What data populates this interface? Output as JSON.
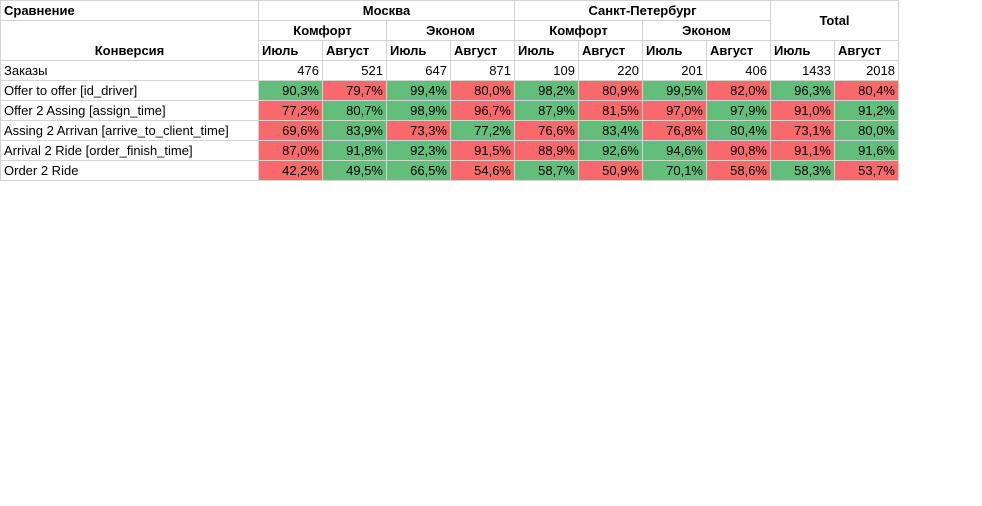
{
  "header": {
    "title": "Сравнение",
    "row_label": "Конверсия",
    "cities": [
      "Москва",
      "Санкт-Петербург"
    ],
    "total": "Total",
    "classes": [
      "Комфорт",
      "Эконом",
      "Комфорт",
      "Эконом"
    ],
    "months": [
      "Июль",
      "Август",
      "Июль",
      "Август",
      "Июль",
      "Август",
      "Июль",
      "Август",
      "Июль",
      "Август"
    ]
  },
  "colors": {
    "green": "#63be7b",
    "red": "#f8696b"
  },
  "rows": [
    {
      "label": "Заказы",
      "values": [
        "476",
        "521",
        "647",
        "871",
        "109",
        "220",
        "201",
        "406",
        "1433",
        "2018"
      ],
      "colors": [
        "",
        "",
        "",
        "",
        "",
        "",
        "",
        "",
        "",
        ""
      ]
    },
    {
      "label": "Offer to offer [id_driver]",
      "values": [
        "90,3%",
        "79,7%",
        "99,4%",
        "80,0%",
        "98,2%",
        "80,9%",
        "99,5%",
        "82,0%",
        "96,3%",
        "80,4%"
      ],
      "colors": [
        "g",
        "r",
        "g",
        "r",
        "g",
        "r",
        "g",
        "r",
        "g",
        "r"
      ]
    },
    {
      "label": "Offer 2 Assing [assign_time]",
      "values": [
        "77,2%",
        "80,7%",
        "98,9%",
        "96,7%",
        "87,9%",
        "81,5%",
        "97,0%",
        "97,9%",
        "91,0%",
        "91,2%"
      ],
      "colors": [
        "r",
        "g",
        "g",
        "r",
        "g",
        "r",
        "r",
        "g",
        "r",
        "g"
      ]
    },
    {
      "label": "Assing 2 Arrivan [arrive_to_client_time]",
      "values": [
        "69,6%",
        "83,9%",
        "73,3%",
        "77,2%",
        "76,6%",
        "83,4%",
        "76,8%",
        "80,4%",
        "73,1%",
        "80,0%"
      ],
      "colors": [
        "r",
        "g",
        "r",
        "g",
        "r",
        "g",
        "r",
        "g",
        "r",
        "g"
      ]
    },
    {
      "label": "Arrival 2 Ride  [order_finish_time]",
      "values": [
        "87,0%",
        "91,8%",
        "92,3%",
        "91,5%",
        "88,9%",
        "92,6%",
        "94,6%",
        "90,8%",
        "91,1%",
        "91,6%"
      ],
      "colors": [
        "r",
        "g",
        "g",
        "r",
        "r",
        "g",
        "g",
        "r",
        "r",
        "g"
      ]
    },
    {
      "label": "Order 2 Ride",
      "values": [
        "42,2%",
        "49,5%",
        "66,5%",
        "54,6%",
        "58,7%",
        "50,9%",
        "70,1%",
        "58,6%",
        "58,3%",
        "53,7%"
      ],
      "colors": [
        "r",
        "g",
        "g",
        "r",
        "g",
        "r",
        "g",
        "r",
        "g",
        "r"
      ]
    }
  ]
}
